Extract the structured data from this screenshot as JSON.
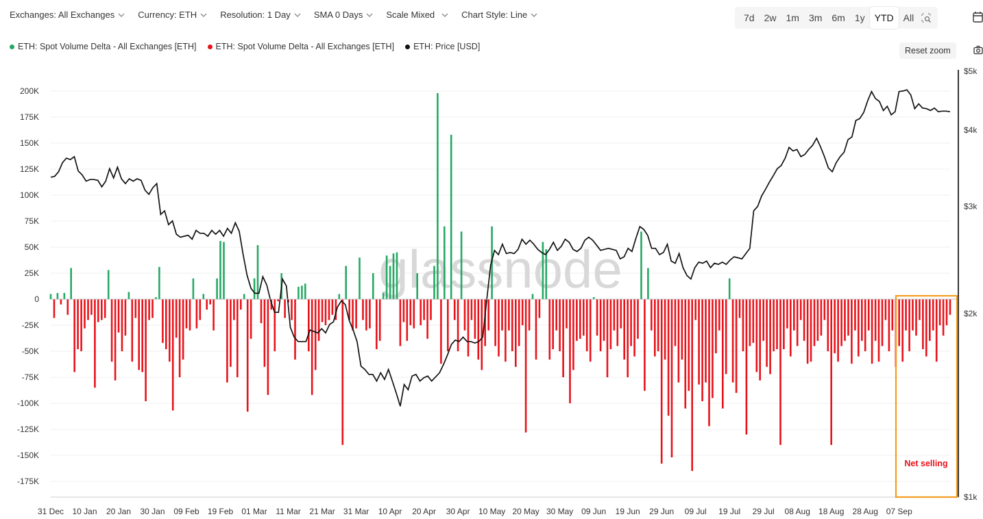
{
  "toolbar": {
    "exchanges": "Exchanges: All Exchanges",
    "currency": "Currency: ETH",
    "resolution": "Resolution: 1 Day",
    "sma": "SMA 0 Days",
    "scale": "Scale Mixed",
    "chart_style": "Chart Style: Line"
  },
  "ranges": [
    "7d",
    "2w",
    "1m",
    "3m",
    "6m",
    "1y",
    "YTD",
    "All"
  ],
  "active_range": "YTD",
  "reset_zoom": "Reset zoom",
  "legend": [
    {
      "label": "ETH: Spot Volume Delta - All Exchanges [ETH]",
      "color": "#25a864"
    },
    {
      "label": "ETH: Spot Volume Delta - All Exchanges [ETH]",
      "color": "#e8121a"
    },
    {
      "label": "ETH: Price [USD]",
      "color": "#111111"
    }
  ],
  "watermark": "glassnode",
  "annotation": "Net selling",
  "colors": {
    "positive": "#25a864",
    "negative": "#e8121a",
    "price": "#111111",
    "highlight": "#f39c1f"
  },
  "chart_data": {
    "type": "bar+line",
    "x_ticks": [
      "31 Dec",
      "10 Jan",
      "20 Jan",
      "30 Jan",
      "09 Feb",
      "19 Feb",
      "01 Mar",
      "11 Mar",
      "21 Mar",
      "31 Mar",
      "10 Apr",
      "20 Apr",
      "30 Apr",
      "10 May",
      "20 May",
      "30 May",
      "09 Jun",
      "19 Jun",
      "29 Jun",
      "09 Jul",
      "19 Jul",
      "29 Jul",
      "08 Aug",
      "18 Aug",
      "28 Aug",
      "07 Sep"
    ],
    "y_left_ticks": [
      "200K",
      "175K",
      "150K",
      "125K",
      "100K",
      "75K",
      "50K",
      "25K",
      "0",
      "-25K",
      "-50K",
      "-75K",
      "-100K",
      "-125K",
      "-150K",
      "-175K"
    ],
    "y_left_range": [
      -190000,
      210000
    ],
    "y_right_ticks": [
      "$5k",
      "$4k",
      "$3k",
      "$2k",
      "$1k"
    ],
    "y_right_scale": "log",
    "y_right_range": [
      1000,
      5000
    ],
    "series": [
      {
        "name": "ETH: Spot Volume Delta - All Exchanges [ETH]",
        "color": "#25a864",
        "kind": "bar",
        "values": [
          5000,
          -18000,
          6000,
          -5000,
          6000,
          -15000,
          30000,
          -70000,
          -48000,
          -50000,
          -28000,
          -20000,
          -15000,
          -85000,
          -22000,
          -20000,
          -18000,
          28000,
          -60000,
          -78000,
          -32000,
          -50000,
          -35000,
          7000,
          -60000,
          -18000,
          -68000,
          -70000,
          -98000,
          -20000,
          -18000,
          2000,
          31000,
          -42000,
          -48000,
          -60000,
          -107000,
          -37000,
          -75000,
          -58000,
          -28000,
          -30000,
          20000,
          -28000,
          -20000,
          5000,
          -10000,
          -5000,
          -30000,
          20000,
          56000,
          55000,
          -80000,
          -65000,
          -20000,
          -75000,
          -10000,
          5000,
          -108000,
          -38000,
          20000,
          52000,
          -23000,
          -65000,
          -92000,
          -10000,
          -50000,
          -2000,
          25000,
          -18000,
          -3000,
          -20000,
          -58000,
          12000,
          13000,
          15000,
          -50000,
          -92000,
          -68000,
          -40000,
          -22000,
          -25000,
          -20000,
          -15000,
          -20000,
          5000,
          -140000,
          32000,
          -20000,
          -30000,
          -28000,
          40000,
          -20000,
          -30000,
          -28000,
          25000,
          -48000,
          -40000,
          6000,
          42000,
          32000,
          44000,
          45000,
          -45000,
          -22000,
          -40000,
          -25000,
          -28000,
          25000,
          -25000,
          -20000,
          -38000,
          -20000,
          32000,
          198000,
          -62000,
          70000,
          -50000,
          158000,
          -20000,
          -50000,
          65000,
          -30000,
          -55000,
          -20000,
          -38000,
          -58000,
          -68000,
          -45000,
          -30000,
          70000,
          -45000,
          -55000,
          -30000,
          -60000,
          -30000,
          -50000,
          -65000,
          -45000,
          -25000,
          -128000,
          -30000,
          5000,
          -58000,
          -18000,
          55000,
          48000,
          -58000,
          -48000,
          -30000,
          -50000,
          -75000,
          -28000,
          -100000,
          -68000,
          -40000,
          -38000,
          -35000,
          -50000,
          -60000,
          2000,
          -35000,
          -50000,
          -40000,
          -75000,
          -48000,
          -30000,
          -45000,
          -28000,
          -58000,
          -75000,
          -45000,
          -55000,
          -38000,
          65000,
          -88000,
          30000,
          -30000,
          -55000,
          -50000,
          -158000,
          -58000,
          -112000,
          -152000,
          -45000,
          -80000,
          -58000,
          -105000,
          -88000,
          -165000,
          -20000,
          -82000,
          -98000,
          -80000,
          -122000,
          -95000,
          -52000,
          -30000,
          -105000,
          -72000,
          20000,
          -80000,
          -90000,
          -18000,
          -50000,
          -130000,
          -45000,
          -42000,
          -70000,
          -78000,
          -40000,
          -65000,
          -72000,
          -50000,
          -48000,
          -140000,
          -48000,
          -28000,
          -55000,
          -30000,
          -45000,
          -20000,
          -40000,
          -62000,
          -60000,
          -45000,
          -40000,
          -35000,
          -20000,
          -50000,
          -140000,
          -52000,
          -60000,
          -45000,
          -40000,
          -35000,
          -62000,
          -30000,
          -55000,
          -40000,
          -50000,
          -30000,
          -62000,
          -40000,
          -60000,
          -45000,
          -20000,
          -50000,
          -30000,
          -65000,
          -45000,
          -60000,
          -30000,
          -50000,
          -30000,
          -35000,
          -20000,
          -48000,
          -55000,
          -40000,
          -30000,
          -60000,
          -25000,
          -35000,
          -25000,
          -15000
        ]
      },
      {
        "name": "ETH: Price [USD]",
        "color": "#111111",
        "kind": "line",
        "axis": "right",
        "values": [
          3350,
          3360,
          3420,
          3540,
          3600,
          3580,
          3620,
          3430,
          3380,
          3300,
          3320,
          3320,
          3310,
          3230,
          3300,
          3460,
          3340,
          3480,
          3330,
          3270,
          3330,
          3300,
          3330,
          3310,
          3190,
          3140,
          3220,
          3270,
          2910,
          2950,
          2800,
          2840,
          2700,
          2670,
          2680,
          2690,
          2650,
          2740,
          2710,
          2710,
          2680,
          2740,
          2700,
          2740,
          2680,
          2760,
          2710,
          2820,
          2730,
          2500,
          2310,
          2200,
          2160,
          2160,
          2300,
          2230,
          2100,
          2010,
          2010,
          2280,
          2220,
          1900,
          1830,
          1800,
          1800,
          1800,
          1880,
          1870,
          1860,
          1890,
          1860,
          1920,
          1940,
          2050,
          2100,
          2070,
          1950,
          1880,
          1800,
          1640,
          1620,
          1590,
          1590,
          1550,
          1600,
          1560,
          1620,
          1550,
          1480,
          1410,
          1530,
          1500,
          1580,
          1590,
          1550,
          1570,
          1580,
          1550,
          1575,
          1600,
          1650,
          1710,
          1780,
          1810,
          1800,
          1830,
          1800,
          1800,
          1790,
          1800,
          1830,
          2100,
          2400,
          2540,
          2500,
          2600,
          2510,
          2520,
          2510,
          2550,
          2650,
          2600,
          2640,
          2600,
          2550,
          2520,
          2500,
          2550,
          2620,
          2540,
          2580,
          2650,
          2620,
          2550,
          2530,
          2560,
          2640,
          2670,
          2640,
          2590,
          2540,
          2550,
          2560,
          2550,
          2540,
          2460,
          2480,
          2560,
          2530,
          2660,
          2780,
          2750,
          2690,
          2560,
          2560,
          2500,
          2520,
          2600,
          2440,
          2420,
          2510,
          2380,
          2310,
          2280,
          2380,
          2430,
          2420,
          2440,
          2380,
          2420,
          2410,
          2430,
          2410,
          2450,
          2480,
          2470,
          2460,
          2510,
          2560,
          2950,
          3000,
          3120,
          3200,
          3290,
          3370,
          3460,
          3500,
          3600,
          3750,
          3700,
          3720,
          3620,
          3650,
          3720,
          3780,
          3880,
          3760,
          3620,
          3470,
          3420,
          3540,
          3620,
          3680,
          3860,
          3900,
          4150,
          4180,
          4280,
          4470,
          4630,
          4510,
          4460,
          4310,
          4380,
          4240,
          4290,
          4630,
          4640,
          4660,
          4570,
          4340,
          4420,
          4350,
          4340,
          4310,
          4350,
          4290,
          4300,
          4300,
          4290
        ]
      }
    ]
  }
}
